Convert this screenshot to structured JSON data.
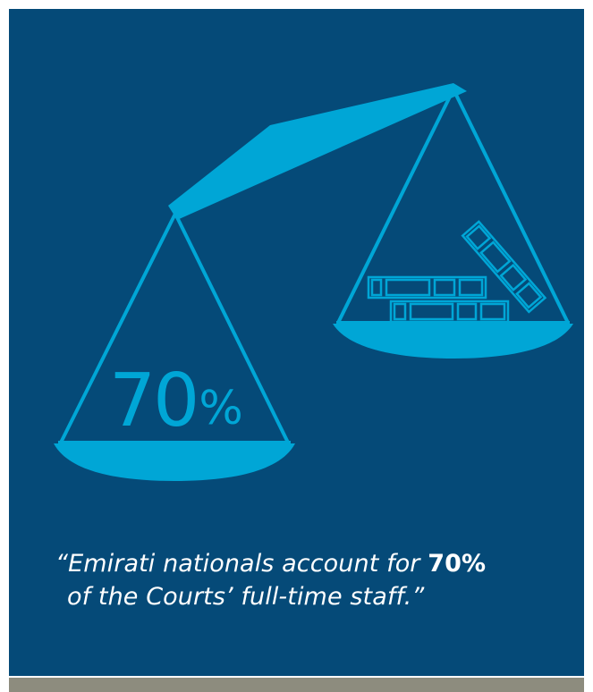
{
  "infographic": {
    "left_pan_percent": "70",
    "left_pan_percent_sign": "%",
    "quote_open": "“Emirati nationals account for ",
    "quote_emphasis": "70%",
    "quote_close": "of the Courts’ full-time staff.”"
  },
  "icons": {
    "scale": "balance-scale-icon",
    "documents": "document-stack-icon"
  },
  "colors": {
    "background": "#054a78",
    "accent": "#00a6d6",
    "text": "#ffffff",
    "footer_bar": "#8d8c7e"
  }
}
